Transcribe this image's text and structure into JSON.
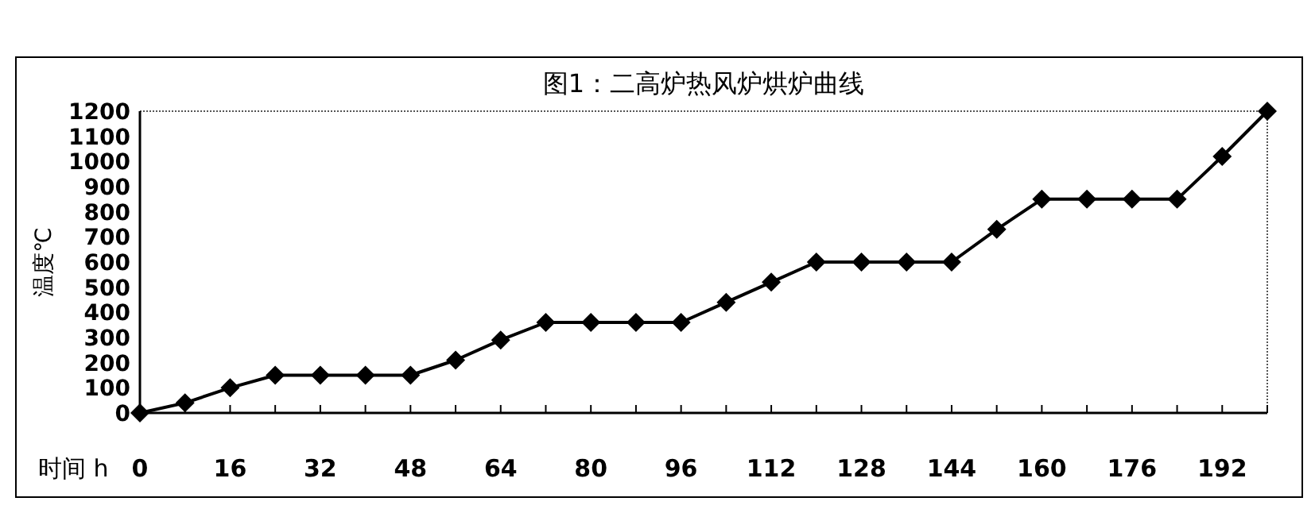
{
  "chart_data": {
    "type": "line",
    "title": "图1：二高炉热风炉烘炉曲线",
    "xlabel": "时间 h",
    "ylabel": "温度℃",
    "x": [
      0,
      8,
      16,
      24,
      32,
      40,
      48,
      56,
      64,
      72,
      80,
      88,
      96,
      104,
      112,
      120,
      128,
      136,
      144,
      152,
      160,
      168,
      176,
      184,
      192,
      200
    ],
    "series": [
      {
        "color": "#000000",
        "values": [
          0,
          40,
          100,
          150,
          150,
          150,
          150,
          210,
          290,
          360,
          360,
          360,
          360,
          440,
          520,
          600,
          600,
          600,
          600,
          730,
          850,
          850,
          850,
          850,
          1020,
          1200
        ]
      }
    ],
    "xlim": [
      0,
      200
    ],
    "xticks": [
      0,
      {
        "value": 8,
        "label": null
      },
      16,
      {
        "value": 24,
        "label": null
      },
      32,
      {
        "value": 40,
        "label": null
      },
      48,
      {
        "value": 56,
        "label": null
      },
      64,
      {
        "value": 72,
        "label": null
      },
      80,
      {
        "value": 88,
        "label": null
      },
      96,
      {
        "value": 104,
        "label": null
      },
      112,
      {
        "value": 120,
        "label": null
      },
      128,
      {
        "value": 136,
        "label": null
      },
      144,
      {
        "value": 152,
        "label": null
      },
      160,
      {
        "value": 168,
        "label": null
      },
      176,
      {
        "value": 184,
        "label": null
      },
      192,
      {
        "value": 200,
        "label": null
      }
    ],
    "ylim": [
      0,
      1200
    ],
    "yticks": [
      0,
      100,
      200,
      300,
      400,
      500,
      600,
      700,
      800,
      900,
      1000,
      1100,
      1200
    ],
    "grid": false,
    "marker": "diamond",
    "line_style": "solid"
  }
}
